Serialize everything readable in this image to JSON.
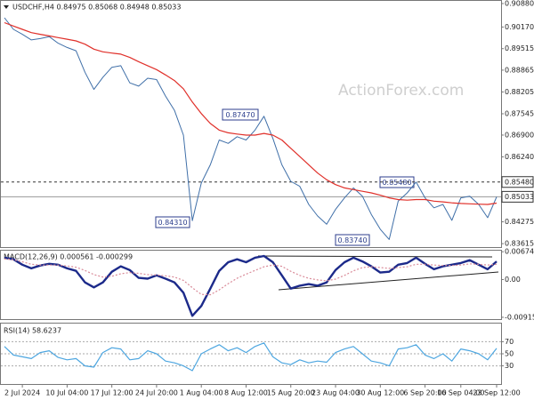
{
  "chart_data": [
    {
      "type": "line",
      "title": "USDCHF,H4  0.84975 0.85068 0.84948 0.85033",
      "watermark": "ActionForex.com",
      "ylim": [
        0.8351,
        0.9096
      ],
      "yticks": [
        {
          "value": 0.9088,
          "label": "0.90880"
        },
        {
          "value": 0.9017,
          "label": "0.90170"
        },
        0.89515,
        0.88865,
        0.88205,
        0.87545,
        {
          "value": 0.869,
          "label": "0.86900"
        },
        {
          "value": 0.8624,
          "label": "0.86240"
        },
        0.84275,
        0.83615
      ],
      "levels": [
        {
          "value": 0.8548,
          "label": "0.85480",
          "style": "dashed"
        },
        {
          "value": 0.85033,
          "label": "0.85033",
          "style": "solid"
        }
      ],
      "annotations": [
        "0.87470",
        "0.84310",
        "0.85480",
        "0.83740"
      ],
      "series": [
        {
          "color": "#3f6fa8",
          "values": [
            0.9045,
            0.901,
            0.8995,
            0.8978,
            0.8982,
            0.8988,
            0.8968,
            0.8955,
            0.8945,
            0.888,
            0.8828,
            0.8865,
            0.8895,
            0.89,
            0.8848,
            0.8838,
            0.8862,
            0.8858,
            0.8808,
            0.8765,
            0.869,
            0.8431,
            0.8545,
            0.86,
            0.8675,
            0.8665,
            0.8685,
            0.8675,
            0.8705,
            0.8747,
            0.868,
            0.86,
            0.855,
            0.8535,
            0.848,
            0.8445,
            0.842,
            0.8465,
            0.85,
            0.853,
            0.8505,
            0.845,
            0.8405,
            0.8374,
            0.849,
            0.8515,
            0.8548,
            0.85,
            0.847,
            0.848,
            0.8432,
            0.85,
            0.8505,
            0.848,
            0.844,
            0.8503
          ]
        },
        {
          "color": "#e0302a",
          "values": [
            0.903,
            0.902,
            0.901,
            0.9,
            0.8995,
            0.899,
            0.8985,
            0.898,
            0.8975,
            0.8965,
            0.895,
            0.8942,
            0.8938,
            0.8935,
            0.8925,
            0.8912,
            0.89,
            0.8888,
            0.8872,
            0.8855,
            0.883,
            0.879,
            0.8755,
            0.8725,
            0.8705,
            0.8697,
            0.8693,
            0.869,
            0.869,
            0.8695,
            0.869,
            0.8675,
            0.865,
            0.8625,
            0.86,
            0.8575,
            0.8555,
            0.854,
            0.853,
            0.8525,
            0.852,
            0.8515,
            0.8508,
            0.85,
            0.8495,
            0.8493,
            0.8495,
            0.8495,
            0.849,
            0.8488,
            0.8485,
            0.8483,
            0.8482,
            0.8481,
            0.848,
            0.8484
          ]
        }
      ]
    },
    {
      "type": "line",
      "title": "MACD(12,26,9) 0.000561 -0.000299",
      "ylim": [
        -0.0096,
        0.007
      ],
      "yticks": [
        0.006742,
        {
          "value": 0,
          "label": "0.00"
        },
        -0.009159
      ],
      "series": [
        {
          "color": "#1c2a8a",
          "values": [
            0.0053,
            0.0049,
            0.0036,
            0.0027,
            0.0034,
            0.0038,
            0.0036,
            0.0027,
            0.0021,
            -0.0007,
            -0.0019,
            -0.0007,
            0.0019,
            0.0032,
            0.0023,
            0.0004,
            0.0002,
            0.001,
            0.0002,
            -0.0007,
            -0.0032,
            -0.0088,
            -0.0064,
            -0.0022,
            0.0021,
            0.0042,
            0.0049,
            0.0042,
            0.0053,
            0.0057,
            0.0042,
            0.001,
            -0.0022,
            -0.0015,
            -0.0011,
            -0.0015,
            -0.0007,
            0.0023,
            0.0042,
            0.0053,
            0.0044,
            0.0032,
            0.0017,
            0.0019,
            0.0036,
            0.004,
            0.0053,
            0.0038,
            0.0025,
            0.0032,
            0.0036,
            0.004,
            0.0047,
            0.0036,
            0.0025,
            0.0044
          ]
        },
        {
          "color": "#d98a98",
          "values": [
            0.005,
            0.0048,
            0.0043,
            0.0037,
            0.0035,
            0.0035,
            0.0035,
            0.0033,
            0.003,
            0.0022,
            0.0012,
            0.0006,
            0.0008,
            0.0014,
            0.0017,
            0.0015,
            0.0012,
            0.0011,
            0.0009,
            0.0006,
            -0.0002,
            -0.002,
            -0.0036,
            -0.0037,
            -0.0025,
            -0.001,
            0.0003,
            0.0013,
            0.0022,
            0.0031,
            0.0035,
            0.0032,
            0.002,
            0.001,
            0.0003,
            -0.0001,
            -0.0003,
            0.0001,
            0.001,
            0.0021,
            0.0029,
            0.0031,
            0.0029,
            0.0027,
            0.0029,
            0.0031,
            0.0037,
            0.0037,
            0.0035,
            0.0034,
            0.0034,
            0.0035,
            0.0038,
            0.0037,
            0.0035,
            0.0037
          ]
        }
      ]
    },
    {
      "type": "line",
      "title": "RSI(14) 58.6237",
      "ylim": [
        0,
        100
      ],
      "yticks": [
        70,
        50,
        30
      ],
      "categories": [
        null,
        null,
        "2 Jul 2024",
        null,
        null,
        null,
        null,
        "10 Jul 04:00",
        null,
        null,
        null,
        null,
        "17 Jul 12:00",
        null,
        null,
        null,
        null,
        "24 Jul 20:00",
        null,
        null,
        null,
        null,
        "1 Aug 04:00",
        null,
        null,
        null,
        null,
        "8 Aug 12:00",
        null,
        null,
        null,
        null,
        "15 Aug 20:00",
        null,
        null,
        null,
        null,
        "23 Aug 04:00",
        null,
        null,
        null,
        null,
        "30 Aug 12:00",
        null,
        null,
        null,
        null,
        "6 Sep 20:00",
        null,
        null,
        null,
        "16 Sep 04:00",
        null,
        null,
        null,
        "23 Sep 12:00"
      ],
      "series": [
        {
          "color": "#4da6e0",
          "values": [
            62,
            48,
            45,
            42,
            52,
            55,
            44,
            40,
            42,
            30,
            28,
            52,
            60,
            58,
            40,
            42,
            55,
            50,
            38,
            35,
            30,
            22,
            50,
            58,
            65,
            55,
            60,
            52,
            62,
            68,
            45,
            35,
            32,
            40,
            35,
            38,
            36,
            52,
            58,
            62,
            50,
            38,
            35,
            30,
            58,
            60,
            65,
            48,
            42,
            50,
            38,
            58,
            55,
            50,
            40,
            59
          ]
        }
      ]
    }
  ]
}
